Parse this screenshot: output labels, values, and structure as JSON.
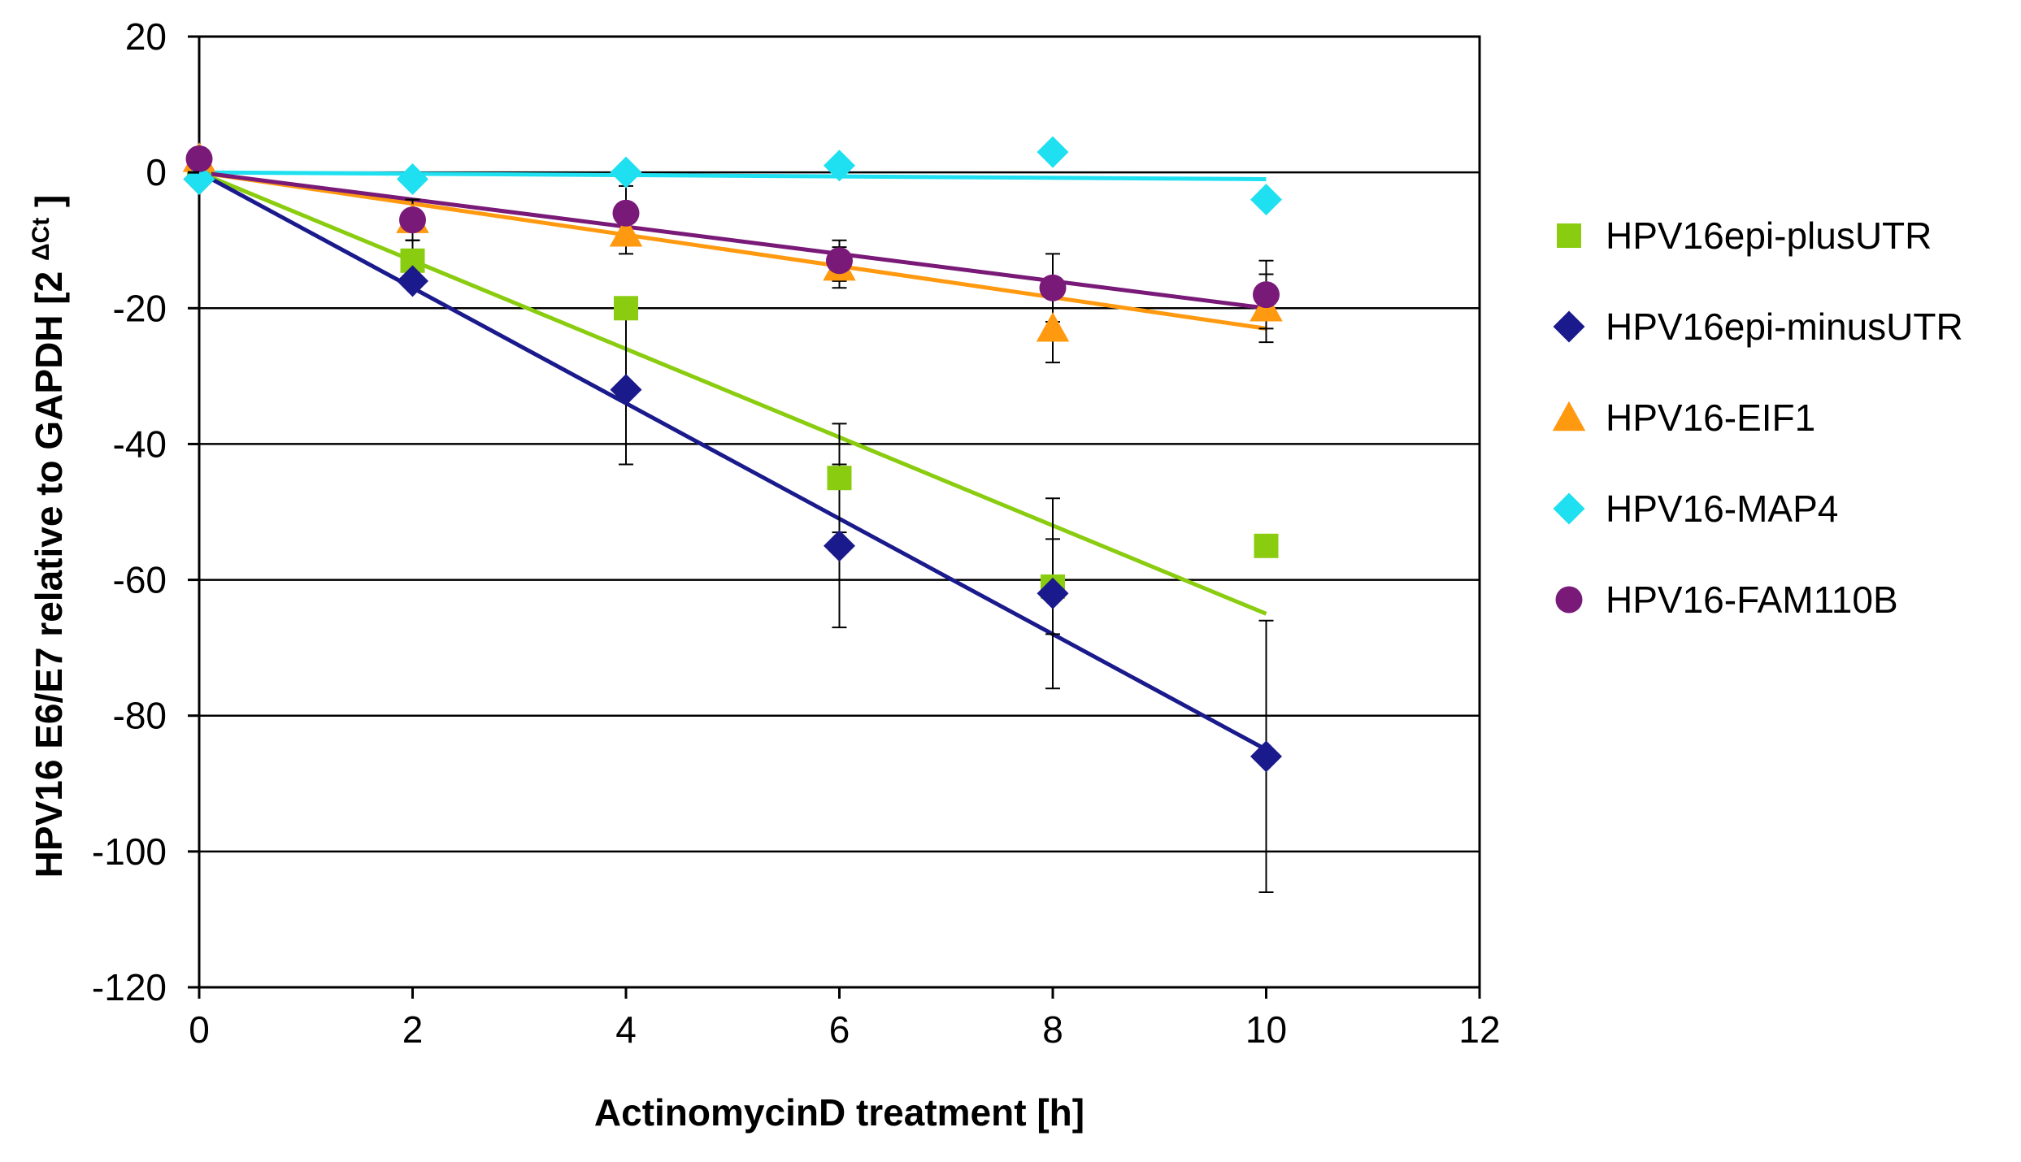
{
  "chart_data": {
    "type": "scatter",
    "title": "",
    "xlabel": "ActinomycinD treatment [h]",
    "ylabel": "HPV16 E6/E7 relative to GAPDH",
    "ylabel_unit_base": "[2",
    "ylabel_unit_sup": "ΔCt",
    "ylabel_unit_close": "]",
    "xlim": [
      0,
      12
    ],
    "ylim": [
      -120,
      20
    ],
    "xticks": [
      0,
      2,
      4,
      6,
      8,
      10,
      12
    ],
    "yticks": [
      20,
      0,
      -20,
      -40,
      -60,
      -80,
      -100,
      -120
    ],
    "grid": "horizontal major",
    "legend_position": "right",
    "x": [
      0,
      2,
      4,
      6,
      8,
      10
    ],
    "series": [
      {
        "name": "HPV16epi-plusUTR",
        "marker": "square",
        "color": "#8ACC0F",
        "values": [
          1,
          -13,
          -20,
          -45,
          -61,
          -55
        ],
        "errors": [
          0,
          3,
          0,
          8,
          7,
          0
        ],
        "trendline": [
          0,
          -65
        ]
      },
      {
        "name": "HPV16epi-minusUTR",
        "marker": "diamond",
        "color": "#1A1A8C",
        "values": [
          -1,
          -16,
          -32,
          -55,
          -62,
          -86
        ],
        "errors": [
          0,
          0,
          11,
          12,
          14,
          20
        ],
        "trendline": [
          0,
          -85
        ]
      },
      {
        "name": "HPV16-EIF1",
        "marker": "triangle",
        "color": "#FF9910",
        "values": [
          2,
          -7,
          -9,
          -14,
          -23,
          -20
        ],
        "errors": [
          0,
          3,
          3,
          3,
          5,
          5
        ],
        "trendline": [
          0,
          -23
        ]
      },
      {
        "name": "HPV16-MAP4",
        "marker": "diamond",
        "color": "#1FE0F0",
        "values": [
          -1,
          -1,
          0,
          1,
          3,
          -4
        ],
        "errors": [
          0,
          0,
          0,
          0,
          0,
          0
        ],
        "trendline": [
          0,
          -1
        ]
      },
      {
        "name": "HPV16-FAM110B",
        "marker": "circle",
        "color": "#7A1A78",
        "values": [
          2,
          -7,
          -6,
          -13,
          -17,
          -18
        ],
        "errors": [
          0,
          3,
          4,
          3,
          5,
          5
        ],
        "trendline": [
          0,
          -20
        ]
      }
    ]
  }
}
